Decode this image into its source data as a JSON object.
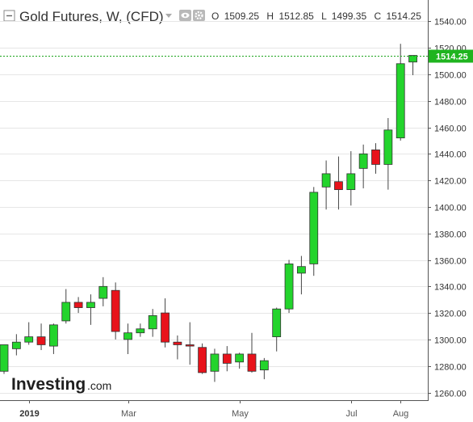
{
  "header": {
    "title": "Gold Futures, W, (CFD)",
    "ohlc": {
      "o_label": "O",
      "o": "1509.25",
      "h_label": "H",
      "h": "1512.85",
      "l_label": "L",
      "l": "1499.35",
      "c_label": "C",
      "c": "1514.25"
    },
    "icons": [
      "collapse-icon",
      "dropdown-arrow-icon",
      "eye-icon",
      "gear-icon"
    ]
  },
  "logo": {
    "main": "Investing",
    "suffix": ".com"
  },
  "colors": {
    "up": "#23d42c",
    "down": "#e8121b",
    "price_line": "#1aa31a",
    "price_label_bg": "#1fb41f",
    "grid": "#e6e6e6",
    "axis": "#555555"
  },
  "chart_data": {
    "type": "candlestick",
    "title": "Gold Futures, W, (CFD)",
    "interval": "W",
    "y_ticks": [
      1260,
      1280,
      1300,
      1320,
      1340,
      1360,
      1380,
      1400,
      1420,
      1440,
      1460,
      1480,
      1500,
      1520,
      1540
    ],
    "ylim": [
      1252,
      1548
    ],
    "x_tick_labels": [
      {
        "label": "2019",
        "index": 2,
        "bold": true
      },
      {
        "label": "Mar",
        "index": 10,
        "bold": false
      },
      {
        "label": "May",
        "index": 19,
        "bold": false
      },
      {
        "label": "Jul",
        "index": 28,
        "bold": false
      },
      {
        "label": "Aug",
        "index": 32,
        "bold": false
      }
    ],
    "last_price": "1514.25",
    "grid": "horizontal",
    "candles": [
      {
        "o": 1276,
        "h": 1296,
        "l": 1274,
        "c": 1296
      },
      {
        "o": 1293,
        "h": 1304,
        "l": 1288,
        "c": 1298
      },
      {
        "o": 1298,
        "h": 1313,
        "l": 1296,
        "c": 1302
      },
      {
        "o": 1302,
        "h": 1312,
        "l": 1292,
        "c": 1296
      },
      {
        "o": 1295,
        "h": 1312,
        "l": 1289,
        "c": 1311
      },
      {
        "o": 1314,
        "h": 1338,
        "l": 1312,
        "c": 1328
      },
      {
        "o": 1328,
        "h": 1332,
        "l": 1320,
        "c": 1324
      },
      {
        "o": 1324,
        "h": 1334,
        "l": 1311,
        "c": 1328
      },
      {
        "o": 1331,
        "h": 1347,
        "l": 1325,
        "c": 1340
      },
      {
        "o": 1337,
        "h": 1343,
        "l": 1300,
        "c": 1306
      },
      {
        "o": 1300,
        "h": 1312,
        "l": 1289,
        "c": 1305
      },
      {
        "o": 1305,
        "h": 1312,
        "l": 1302,
        "c": 1308
      },
      {
        "o": 1308,
        "h": 1323,
        "l": 1302,
        "c": 1318
      },
      {
        "o": 1320,
        "h": 1331,
        "l": 1294,
        "c": 1298
      },
      {
        "o": 1298,
        "h": 1303,
        "l": 1285,
        "c": 1296
      },
      {
        "o": 1296,
        "h": 1313,
        "l": 1281,
        "c": 1295
      },
      {
        "o": 1294,
        "h": 1297,
        "l": 1274,
        "c": 1275
      },
      {
        "o": 1276,
        "h": 1293,
        "l": 1268,
        "c": 1289
      },
      {
        "o": 1289,
        "h": 1295,
        "l": 1276,
        "c": 1282
      },
      {
        "o": 1283,
        "h": 1290,
        "l": 1278,
        "c": 1289
      },
      {
        "o": 1289,
        "h": 1305,
        "l": 1275,
        "c": 1276
      },
      {
        "o": 1277,
        "h": 1286,
        "l": 1270,
        "c": 1284
      },
      {
        "o": 1302,
        "h": 1324,
        "l": 1291,
        "c": 1323
      },
      {
        "o": 1323,
        "h": 1360,
        "l": 1320,
        "c": 1357
      },
      {
        "o": 1350,
        "h": 1363,
        "l": 1334,
        "c": 1355
      },
      {
        "o": 1357,
        "h": 1415,
        "l": 1348,
        "c": 1411
      },
      {
        "o": 1415,
        "h": 1435,
        "l": 1398,
        "c": 1425
      },
      {
        "o": 1419,
        "h": 1438,
        "l": 1398,
        "c": 1413
      },
      {
        "o": 1413,
        "h": 1442,
        "l": 1401,
        "c": 1425
      },
      {
        "o": 1429,
        "h": 1447,
        "l": 1414,
        "c": 1440
      },
      {
        "o": 1443,
        "h": 1448,
        "l": 1425,
        "c": 1432
      },
      {
        "o": 1432,
        "h": 1467,
        "l": 1413,
        "c": 1458
      },
      {
        "o": 1452,
        "h": 1523,
        "l": 1450,
        "c": 1508
      },
      {
        "o": 1509.25,
        "h": 1512.85,
        "l": 1499.35,
        "c": 1514.25
      }
    ]
  }
}
